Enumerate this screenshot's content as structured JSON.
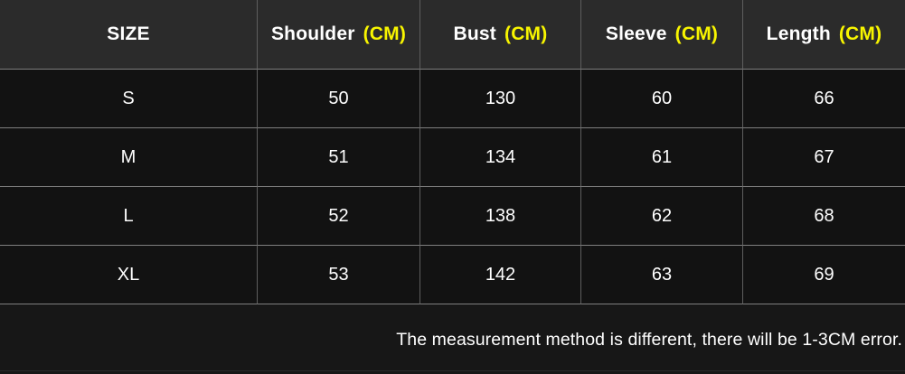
{
  "colors": {
    "header_bg": "#2b2b2b",
    "body_bg": "#121212",
    "footer_bg": "#171717",
    "grid_line_vertical": "#5e5e5e",
    "grid_line_horizontal": "#7f7f7f",
    "text": "#ffffff",
    "accent_unit_yellow": "#f8f500"
  },
  "table": {
    "headers": [
      {
        "label": "SIZE",
        "unit": ""
      },
      {
        "label": "Shoulder",
        "unit": "(CM)"
      },
      {
        "label": "Bust",
        "unit": "(CM)"
      },
      {
        "label": "Sleeve",
        "unit": "(CM)"
      },
      {
        "label": "Length",
        "unit": "(CM)"
      }
    ]
  },
  "footer": {
    "note": "The measurement method is different, there will be 1-3CM error."
  },
  "chart_data": {
    "type": "table",
    "title": "Garment size chart",
    "columns": [
      "SIZE",
      "Shoulder (CM)",
      "Bust (CM)",
      "Sleeve (CM)",
      "Length (CM)"
    ],
    "rows": [
      [
        "S",
        50,
        130,
        60,
        66
      ],
      [
        "M",
        51,
        134,
        61,
        67
      ],
      [
        "L",
        52,
        138,
        62,
        68
      ],
      [
        "XL",
        53,
        142,
        63,
        69
      ]
    ],
    "units": "CM",
    "annotations": [
      "The measurement method is different, there will be 1-3CM error."
    ]
  }
}
